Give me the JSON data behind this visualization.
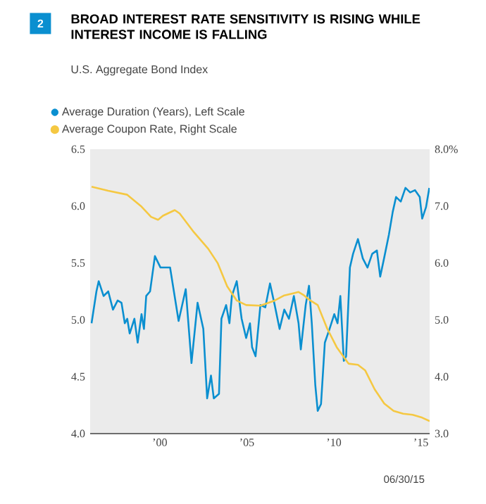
{
  "chart_data": {
    "type": "line",
    "title": "BROAD INTEREST RATE SENSITIVITY IS RISING WHILE INTEREST INCOME IS FALLING",
    "subtitle": "U.S. Aggregate Bond Index",
    "annotations": [
      "2",
      "06/30/15"
    ],
    "legend": "top left",
    "xlim": [
      1996,
      2015.5
    ],
    "xticks": [
      {
        "value": 2000,
        "label": "’00"
      },
      {
        "value": 2005,
        "label": "’05"
      },
      {
        "value": 2010,
        "label": "’10"
      },
      {
        "value": 2015,
        "label": "’15"
      }
    ],
    "ylim": [
      4,
      6.5
    ],
    "yticks": [
      {
        "value": 4,
        "label": "4.0"
      },
      {
        "value": 4.5,
        "label": "4.5"
      },
      {
        "value": 5,
        "label": "5.0"
      },
      {
        "value": 5.5,
        "label": "5.5"
      },
      {
        "value": 6,
        "label": "6.0"
      },
      {
        "value": 6.5,
        "label": "6.5"
      }
    ],
    "y2lim": [
      3,
      8
    ],
    "y2ticks": [
      {
        "value": 3,
        "label": "3.0"
      },
      {
        "value": 4,
        "label": "4.0"
      },
      {
        "value": 5,
        "label": "5.0"
      },
      {
        "value": 6,
        "label": "6.0"
      },
      {
        "value": 7,
        "label": "7.0"
      },
      {
        "value": 8,
        "label": "8.0%"
      }
    ],
    "series": [
      {
        "name": "Average Duration (Years), Left Scale",
        "color": "#0a8fd0",
        "x": [
          1996.08,
          1996.36,
          1996.49,
          1996.77,
          1997.04,
          1997.31,
          1997.58,
          1997.8,
          1997.99,
          1998.13,
          1998.27,
          1998.54,
          1998.73,
          1998.95,
          1999.09,
          1999.22,
          1999.44,
          1999.72,
          2000.04,
          2000.59,
          2001.08,
          2001.49,
          2001.82,
          2002.17,
          2002.5,
          2002.72,
          2002.94,
          2003.1,
          2003.4,
          2003.54,
          2003.81,
          2004.0,
          2004.14,
          2004.42,
          2004.7,
          2004.96,
          2005.18,
          2005.3,
          2005.5,
          2005.78,
          2006.06,
          2006.33,
          2006.6,
          2006.88,
          2007.15,
          2007.42,
          2007.7,
          2007.97,
          2008.1,
          2008.38,
          2008.57,
          2008.73,
          2008.93,
          2009.07,
          2009.26,
          2009.48,
          2009.75,
          2010.02,
          2010.21,
          2010.37,
          2010.57,
          2010.7,
          2010.92,
          2011.1,
          2011.38,
          2011.66,
          2011.93,
          2012.2,
          2012.47,
          2012.66,
          2012.88,
          2013.16,
          2013.38,
          2013.57,
          2013.84,
          2014.11,
          2014.38,
          2014.66,
          2014.93,
          2015.07,
          2015.29,
          2015.48
        ],
        "values": [
          4.97,
          5.25,
          5.34,
          5.21,
          5.25,
          5.09,
          5.17,
          5.15,
          4.97,
          5.01,
          4.88,
          5.01,
          4.8,
          5.05,
          4.92,
          5.21,
          5.25,
          5.56,
          5.46,
          5.46,
          4.99,
          5.27,
          4.62,
          5.15,
          4.92,
          4.31,
          4.51,
          4.31,
          4.35,
          5.01,
          5.13,
          4.97,
          5.21,
          5.34,
          5.01,
          4.84,
          4.97,
          4.76,
          4.68,
          5.13,
          5.11,
          5.32,
          5.13,
          4.92,
          5.09,
          5.01,
          5.21,
          4.97,
          4.74,
          5.13,
          5.3,
          4.97,
          4.43,
          4.2,
          4.26,
          4.8,
          4.92,
          5.05,
          4.97,
          5.21,
          4.64,
          4.68,
          5.46,
          5.58,
          5.71,
          5.54,
          5.46,
          5.58,
          5.61,
          5.38,
          5.54,
          5.75,
          5.95,
          6.08,
          6.04,
          6.16,
          6.12,
          6.14,
          6.08,
          5.89,
          5.99,
          6.16
        ]
      },
      {
        "name": "Average Coupon Rate, Right Scale",
        "color": "#f5c842",
        "axis": "y2",
        "x": [
          1996.08,
          1997.04,
          1998.13,
          1998.95,
          1999.5,
          1999.9,
          2000.18,
          2000.86,
          2001.14,
          2001.96,
          2002.78,
          2003.32,
          2003.87,
          2004.42,
          2004.96,
          2005.78,
          2006.6,
          2007.15,
          2007.7,
          2007.97,
          2008.24,
          2008.65,
          2009.07,
          2009.61,
          2010.16,
          2010.84,
          2011.38,
          2011.8,
          2012.34,
          2012.89,
          2013.43,
          2013.98,
          2014.52,
          2015.07,
          2015.5
        ],
        "values": [
          7.34,
          7.27,
          7.2,
          6.99,
          6.81,
          6.76,
          6.83,
          6.93,
          6.87,
          6.54,
          6.25,
          6.0,
          5.59,
          5.34,
          5.26,
          5.25,
          5.34,
          5.43,
          5.47,
          5.49,
          5.44,
          5.34,
          5.26,
          4.85,
          4.52,
          4.23,
          4.21,
          4.11,
          3.78,
          3.53,
          3.4,
          3.35,
          3.33,
          3.28,
          3.22
        ]
      }
    ]
  }
}
